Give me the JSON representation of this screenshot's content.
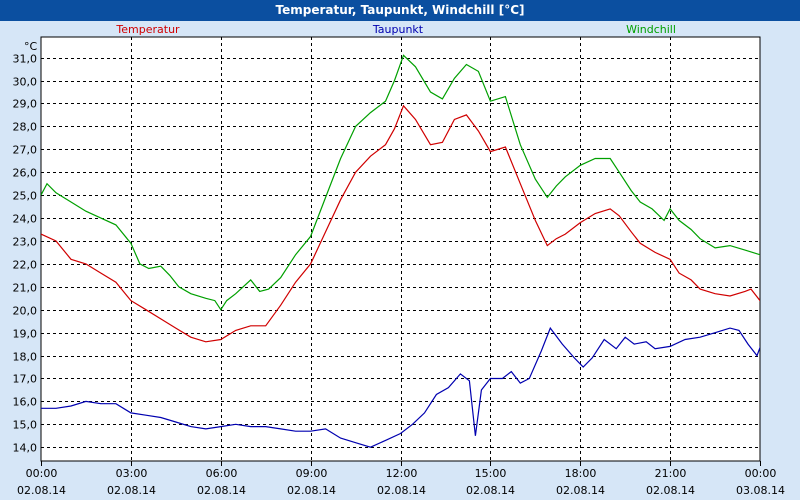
{
  "window": {
    "title": "Temperatur, Taupunkt, Windchill [°C]"
  },
  "colors": {
    "temperatur": "#d00000",
    "taupunkt": "#0000b0",
    "windchill": "#00a000",
    "plot_bg": "#ffffff",
    "frame_bg": "#d6e6f7",
    "title_bg": "#0b4fa0"
  },
  "chart_data": {
    "type": "line",
    "title": "Temperatur, Taupunkt, Windchill [°C]",
    "ylabel": "°C",
    "xlabel": "",
    "ylim": [
      13.4,
      31.9
    ],
    "xlim": [
      0,
      24
    ],
    "yticks": [
      14.0,
      15.0,
      16.0,
      17.0,
      18.0,
      19.0,
      20.0,
      21.0,
      22.0,
      23.0,
      24.0,
      25.0,
      26.0,
      27.0,
      28.0,
      29.0,
      30.0,
      31.0
    ],
    "ytick_labels": [
      "14,0",
      "15,0",
      "16,0",
      "17,0",
      "18,0",
      "19,0",
      "20,0",
      "21,0",
      "22,0",
      "23,0",
      "24,0",
      "25,0",
      "26,0",
      "27,0",
      "28,0",
      "29,0",
      "30,0",
      "31,0"
    ],
    "xticks": [
      {
        "x": 0,
        "time": "00:00",
        "date": "02.08.14"
      },
      {
        "x": 3,
        "time": "03:00",
        "date": "02.08.14"
      },
      {
        "x": 6,
        "time": "06:00",
        "date": "02.08.14"
      },
      {
        "x": 9,
        "time": "09:00",
        "date": "02.08.14"
      },
      {
        "x": 12,
        "time": "12:00",
        "date": "02.08.14"
      },
      {
        "x": 15,
        "time": "15:00",
        "date": "02.08.14"
      },
      {
        "x": 18,
        "time": "18:00",
        "date": "02.08.14"
      },
      {
        "x": 21,
        "time": "21:00",
        "date": "02.08.14"
      },
      {
        "x": 24,
        "time": "00:00",
        "date": "03.08.14"
      }
    ],
    "grid": true,
    "series": [
      {
        "name": "Temperatur",
        "color": "#d00000",
        "points": [
          [
            0,
            23.3
          ],
          [
            0.5,
            23.0
          ],
          [
            1.0,
            22.2
          ],
          [
            1.5,
            22.0
          ],
          [
            2.0,
            21.6
          ],
          [
            2.5,
            21.2
          ],
          [
            3.0,
            20.4
          ],
          [
            3.5,
            20.0
          ],
          [
            4.0,
            19.6
          ],
          [
            4.5,
            19.2
          ],
          [
            5.0,
            18.8
          ],
          [
            5.5,
            18.6
          ],
          [
            6.0,
            18.7
          ],
          [
            6.5,
            19.1
          ],
          [
            7.0,
            19.3
          ],
          [
            7.5,
            19.3
          ],
          [
            8.0,
            20.2
          ],
          [
            8.5,
            21.2
          ],
          [
            9.0,
            22.0
          ],
          [
            9.5,
            23.4
          ],
          [
            10.0,
            24.8
          ],
          [
            10.5,
            26.0
          ],
          [
            11.0,
            26.7
          ],
          [
            11.5,
            27.2
          ],
          [
            11.8,
            27.9
          ],
          [
            12.1,
            28.9
          ],
          [
            12.5,
            28.3
          ],
          [
            13.0,
            27.2
          ],
          [
            13.4,
            27.3
          ],
          [
            13.8,
            28.3
          ],
          [
            14.2,
            28.5
          ],
          [
            14.6,
            27.8
          ],
          [
            15.0,
            26.9
          ],
          [
            15.5,
            27.1
          ],
          [
            16.0,
            25.5
          ],
          [
            16.5,
            23.9
          ],
          [
            16.9,
            22.8
          ],
          [
            17.2,
            23.1
          ],
          [
            17.5,
            23.3
          ],
          [
            18.0,
            23.8
          ],
          [
            18.5,
            24.2
          ],
          [
            19.0,
            24.4
          ],
          [
            19.3,
            24.1
          ],
          [
            19.7,
            23.4
          ],
          [
            20.0,
            22.9
          ],
          [
            20.5,
            22.5
          ],
          [
            21.0,
            22.2
          ],
          [
            21.3,
            21.6
          ],
          [
            21.7,
            21.3
          ],
          [
            22.0,
            20.9
          ],
          [
            22.5,
            20.7
          ],
          [
            23.0,
            20.6
          ],
          [
            23.5,
            20.8
          ],
          [
            23.7,
            20.9
          ],
          [
            24.0,
            20.4
          ],
          [
            24.3,
            20.2
          ]
        ]
      },
      {
        "name": "Taupunkt",
        "color": "#0000b0",
        "points": [
          [
            0,
            15.7
          ],
          [
            0.5,
            15.7
          ],
          [
            1.0,
            15.8
          ],
          [
            1.5,
            16.0
          ],
          [
            2.0,
            15.9
          ],
          [
            2.5,
            15.9
          ],
          [
            3.0,
            15.5
          ],
          [
            3.5,
            15.4
          ],
          [
            4.0,
            15.3
          ],
          [
            4.5,
            15.1
          ],
          [
            5.0,
            14.9
          ],
          [
            5.5,
            14.8
          ],
          [
            6.0,
            14.9
          ],
          [
            6.5,
            15.0
          ],
          [
            7.0,
            14.9
          ],
          [
            7.5,
            14.9
          ],
          [
            8.0,
            14.8
          ],
          [
            8.5,
            14.7
          ],
          [
            9.0,
            14.7
          ],
          [
            9.5,
            14.8
          ],
          [
            10.0,
            14.4
          ],
          [
            10.5,
            14.2
          ],
          [
            11.0,
            14.0
          ],
          [
            11.5,
            14.3
          ],
          [
            12.0,
            14.6
          ],
          [
            12.4,
            15.0
          ],
          [
            12.8,
            15.5
          ],
          [
            13.2,
            16.3
          ],
          [
            13.6,
            16.6
          ],
          [
            14.0,
            17.2
          ],
          [
            14.3,
            16.9
          ],
          [
            14.5,
            14.5
          ],
          [
            14.7,
            16.5
          ],
          [
            15.0,
            17.0
          ],
          [
            15.4,
            17.0
          ],
          [
            15.7,
            17.3
          ],
          [
            16.0,
            16.8
          ],
          [
            16.3,
            17.0
          ],
          [
            16.7,
            18.2
          ],
          [
            17.0,
            19.2
          ],
          [
            17.4,
            18.5
          ],
          [
            17.8,
            17.9
          ],
          [
            18.1,
            17.5
          ],
          [
            18.4,
            17.9
          ],
          [
            18.8,
            18.7
          ],
          [
            19.2,
            18.3
          ],
          [
            19.5,
            18.8
          ],
          [
            19.8,
            18.5
          ],
          [
            20.2,
            18.6
          ],
          [
            20.5,
            18.3
          ],
          [
            21.0,
            18.4
          ],
          [
            21.5,
            18.7
          ],
          [
            22.0,
            18.8
          ],
          [
            22.5,
            19.0
          ],
          [
            23.0,
            19.2
          ],
          [
            23.3,
            19.1
          ],
          [
            23.6,
            18.5
          ],
          [
            23.9,
            18.0
          ],
          [
            24.1,
            18.7
          ],
          [
            24.3,
            18.9
          ]
        ]
      },
      {
        "name": "Windchill",
        "color": "#00a000",
        "points": [
          [
            0,
            25.0
          ],
          [
            0.2,
            25.5
          ],
          [
            0.5,
            25.1
          ],
          [
            1.0,
            24.7
          ],
          [
            1.5,
            24.3
          ],
          [
            2.0,
            24.0
          ],
          [
            2.5,
            23.7
          ],
          [
            3.0,
            22.9
          ],
          [
            3.3,
            22.0
          ],
          [
            3.6,
            21.8
          ],
          [
            4.0,
            21.9
          ],
          [
            4.3,
            21.5
          ],
          [
            4.6,
            21.0
          ],
          [
            5.0,
            20.7
          ],
          [
            5.5,
            20.5
          ],
          [
            5.8,
            20.4
          ],
          [
            6.0,
            20.0
          ],
          [
            6.2,
            20.4
          ],
          [
            6.5,
            20.7
          ],
          [
            7.0,
            21.3
          ],
          [
            7.3,
            20.8
          ],
          [
            7.6,
            20.9
          ],
          [
            8.0,
            21.4
          ],
          [
            8.5,
            22.4
          ],
          [
            9.0,
            23.2
          ],
          [
            9.5,
            24.9
          ],
          [
            10.0,
            26.6
          ],
          [
            10.5,
            28.0
          ],
          [
            11.0,
            28.6
          ],
          [
            11.5,
            29.1
          ],
          [
            11.8,
            30.0
          ],
          [
            12.1,
            31.1
          ],
          [
            12.5,
            30.6
          ],
          [
            13.0,
            29.5
          ],
          [
            13.4,
            29.2
          ],
          [
            13.8,
            30.1
          ],
          [
            14.2,
            30.7
          ],
          [
            14.6,
            30.4
          ],
          [
            15.0,
            29.1
          ],
          [
            15.5,
            29.3
          ],
          [
            16.0,
            27.2
          ],
          [
            16.5,
            25.7
          ],
          [
            16.9,
            24.9
          ],
          [
            17.2,
            25.4
          ],
          [
            17.5,
            25.8
          ],
          [
            18.0,
            26.3
          ],
          [
            18.5,
            26.6
          ],
          [
            19.0,
            26.6
          ],
          [
            19.3,
            26.0
          ],
          [
            19.7,
            25.2
          ],
          [
            20.0,
            24.7
          ],
          [
            20.4,
            24.4
          ],
          [
            20.8,
            23.9
          ],
          [
            21.0,
            24.4
          ],
          [
            21.3,
            23.9
          ],
          [
            21.7,
            23.5
          ],
          [
            22.0,
            23.1
          ],
          [
            22.5,
            22.7
          ],
          [
            23.0,
            22.8
          ],
          [
            23.5,
            22.6
          ],
          [
            24.0,
            22.4
          ],
          [
            24.3,
            22.0
          ]
        ]
      }
    ]
  }
}
